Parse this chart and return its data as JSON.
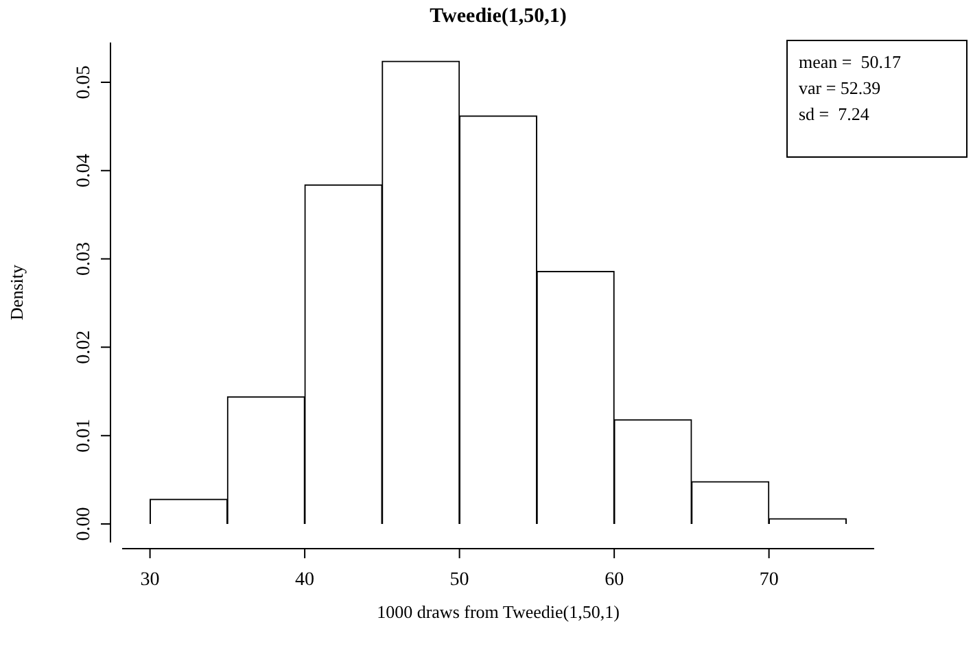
{
  "chart_data": {
    "type": "histogram",
    "title": "Tweedie(1,50,1)",
    "xlabel": "1000 draws from Tweedie(1,50,1)",
    "ylabel": "Density",
    "bins": [
      30,
      35,
      40,
      45,
      50,
      55,
      60,
      65,
      70,
      75
    ],
    "values": [
      0.0028,
      0.0144,
      0.0384,
      0.0524,
      0.0462,
      0.0286,
      0.0118,
      0.0048,
      0.0006
    ],
    "color": "#ffffff",
    "xlim": [
      28.2,
      76.8
    ],
    "xticks": [
      30,
      40,
      50,
      60,
      70
    ],
    "ylim": [
      -0.0021,
      0.0545
    ],
    "yticks": [
      {
        "value": 0,
        "label": "0.00"
      },
      {
        "value": 0.01,
        "label": "0.01"
      },
      {
        "value": 0.02,
        "label": "0.02"
      },
      {
        "value": 0.03,
        "label": "0.03"
      },
      {
        "value": 0.04,
        "label": "0.04"
      },
      {
        "value": 0.05,
        "label": "0.05"
      }
    ],
    "grid": false,
    "annotations": [
      "mean =  50.17",
      "var = 52.39",
      "sd =  7.24"
    ]
  }
}
